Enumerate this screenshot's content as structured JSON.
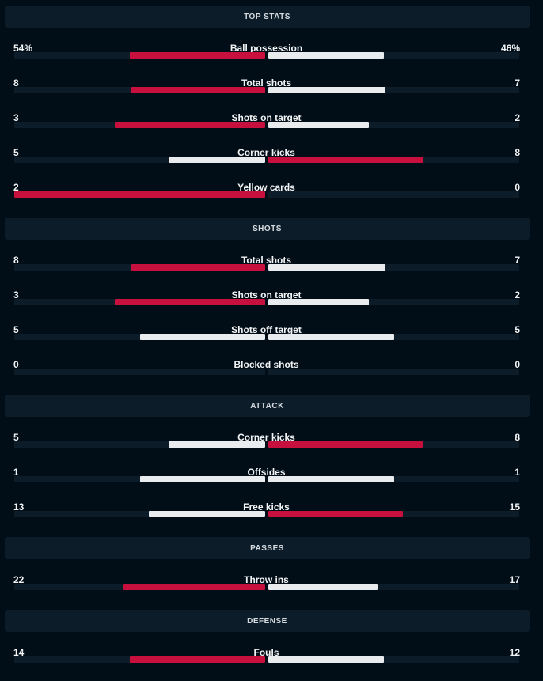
{
  "colors": {
    "leader": "#c8103e",
    "trailer": "#e9ecee",
    "background": "#010d17",
    "header_bg": "#0c1d29",
    "track": "#0c1c28"
  },
  "sections": [
    {
      "title": "TOP STATS",
      "stats": [
        {
          "label": "Ball possession",
          "home": "54%",
          "away": "46%",
          "home_value": 54,
          "away_value": 46
        },
        {
          "label": "Total shots",
          "home": "8",
          "away": "7",
          "home_value": 8,
          "away_value": 7
        },
        {
          "label": "Shots on target",
          "home": "3",
          "away": "2",
          "home_value": 3,
          "away_value": 2
        },
        {
          "label": "Corner kicks",
          "home": "5",
          "away": "8",
          "home_value": 5,
          "away_value": 8
        },
        {
          "label": "Yellow cards",
          "home": "2",
          "away": "0",
          "home_value": 2,
          "away_value": 0
        }
      ]
    },
    {
      "title": "SHOTS",
      "stats": [
        {
          "label": "Total shots",
          "home": "8",
          "away": "7",
          "home_value": 8,
          "away_value": 7
        },
        {
          "label": "Shots on target",
          "home": "3",
          "away": "2",
          "home_value": 3,
          "away_value": 2
        },
        {
          "label": "Shots off target",
          "home": "5",
          "away": "5",
          "home_value": 5,
          "away_value": 5
        },
        {
          "label": "Blocked shots",
          "home": "0",
          "away": "0",
          "home_value": 0,
          "away_value": 0
        }
      ]
    },
    {
      "title": "ATTACK",
      "stats": [
        {
          "label": "Corner kicks",
          "home": "5",
          "away": "8",
          "home_value": 5,
          "away_value": 8
        },
        {
          "label": "Offsides",
          "home": "1",
          "away": "1",
          "home_value": 1,
          "away_value": 1
        },
        {
          "label": "Free kicks",
          "home": "13",
          "away": "15",
          "home_value": 13,
          "away_value": 15
        }
      ]
    },
    {
      "title": "PASSES",
      "stats": [
        {
          "label": "Throw ins",
          "home": "22",
          "away": "17",
          "home_value": 22,
          "away_value": 17
        }
      ]
    },
    {
      "title": "DEFENSE",
      "stats": [
        {
          "label": "Fouls",
          "home": "14",
          "away": "12",
          "home_value": 14,
          "away_value": 12
        }
      ]
    }
  ]
}
